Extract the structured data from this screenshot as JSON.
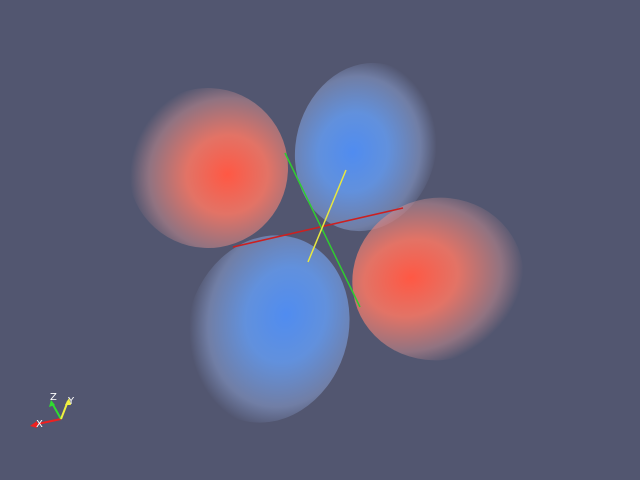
{
  "scene": {
    "background_color": "#525670",
    "lobes": [
      {
        "name": "red-lobe-upper-left",
        "phase": "positive",
        "color": "#ff5a44"
      },
      {
        "name": "blue-lobe-upper",
        "phase": "negative",
        "color": "#5a95f0"
      },
      {
        "name": "red-lobe-right",
        "phase": "positive",
        "color": "#ff5a44"
      },
      {
        "name": "blue-lobe-lower",
        "phase": "negative",
        "color": "#5a95f0"
      }
    ],
    "axes_colors": {
      "x": "#cc2020",
      "y": "#e8e840",
      "z": "#30cc30"
    }
  },
  "orientation": {
    "labels": {
      "x": "X",
      "y": "Y",
      "z": "Z"
    },
    "colors": {
      "x": "#ee2020",
      "y": "#f0f040",
      "z": "#30dd30"
    }
  }
}
